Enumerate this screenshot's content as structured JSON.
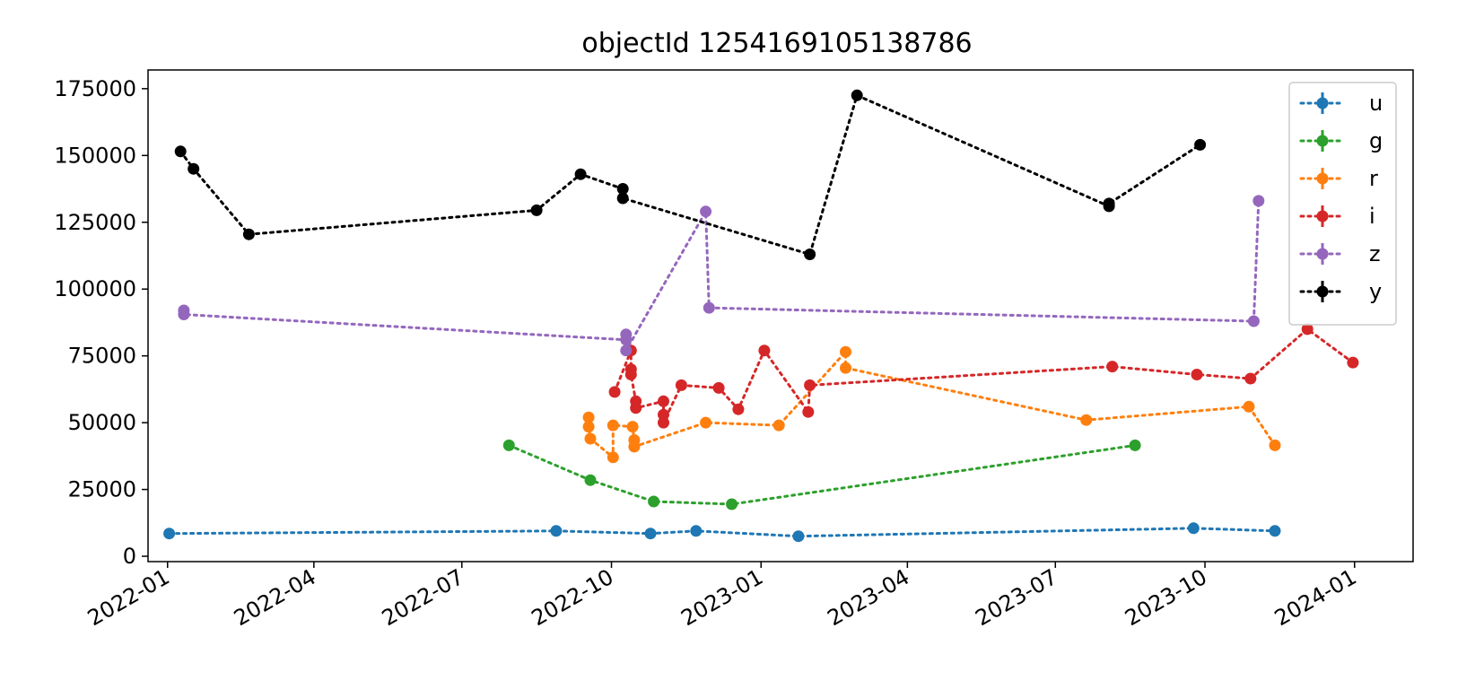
{
  "chart_data": {
    "type": "scatter",
    "title": "objectId 1254169105138786",
    "xlabel": "",
    "ylabel": "",
    "x_axis_type": "date",
    "xlim": [
      "2021-12-20",
      "2024-02-06"
    ],
    "ylim": [
      -2000,
      182000
    ],
    "x_ticks": [
      "2022-01",
      "2022-04",
      "2022-07",
      "2022-10",
      "2023-01",
      "2023-04",
      "2023-07",
      "2023-10",
      "2024-01"
    ],
    "y_ticks": [
      0,
      25000,
      50000,
      75000,
      100000,
      125000,
      150000,
      175000
    ],
    "y_tick_labels": [
      "0",
      "25000",
      "50000",
      "75000",
      "100000",
      "125000",
      "150000",
      "175000"
    ],
    "line_style": "dotted",
    "markers": true,
    "grid": false,
    "legend_position": "top-right",
    "series": [
      {
        "name": "u",
        "color": "#1f77b4",
        "points": [
          [
            "2022-01-02",
            8500
          ],
          [
            "2022-08-28",
            9500
          ],
          [
            "2022-10-25",
            8500
          ],
          [
            "2022-11-22",
            9500
          ],
          [
            "2023-01-24",
            7500
          ],
          [
            "2023-09-24",
            10500
          ],
          [
            "2023-11-13",
            9500
          ]
        ]
      },
      {
        "name": "g",
        "color": "#2ca02c",
        "points": [
          [
            "2022-07-30",
            41500
          ],
          [
            "2022-09-18",
            28500
          ],
          [
            "2022-10-27",
            20500
          ],
          [
            "2022-12-14",
            19500
          ],
          [
            "2023-08-19",
            41500
          ]
        ]
      },
      {
        "name": "r",
        "color": "#ff7f0e",
        "points": [
          [
            "2022-09-17",
            52000
          ],
          [
            "2022-09-17",
            48500
          ],
          [
            "2022-09-18",
            44000
          ],
          [
            "2022-10-02",
            37000
          ],
          [
            "2022-10-02",
            49000
          ],
          [
            "2022-10-14",
            48500
          ],
          [
            "2022-10-15",
            43500
          ],
          [
            "2022-10-15",
            41000
          ],
          [
            "2022-11-28",
            50000
          ],
          [
            "2023-01-12",
            49000
          ],
          [
            "2023-02-22",
            76500
          ],
          [
            "2023-02-22",
            70500
          ],
          [
            "2023-07-20",
            51000
          ],
          [
            "2023-10-28",
            56000
          ],
          [
            "2023-11-13",
            41500
          ]
        ]
      },
      {
        "name": "i",
        "color": "#d62728",
        "points": [
          [
            "2022-10-03",
            61500
          ],
          [
            "2022-10-13",
            77000
          ],
          [
            "2022-10-13",
            70000
          ],
          [
            "2022-10-13",
            68000
          ],
          [
            "2022-10-16",
            58000
          ],
          [
            "2022-10-16",
            55500
          ],
          [
            "2022-11-02",
            58000
          ],
          [
            "2022-11-02",
            53000
          ],
          [
            "2022-11-02",
            50000
          ],
          [
            "2022-11-13",
            64000
          ],
          [
            "2022-12-06",
            63000
          ],
          [
            "2022-12-18",
            55000
          ],
          [
            "2023-01-03",
            77000
          ],
          [
            "2023-01-30",
            54000
          ],
          [
            "2023-01-31",
            64000
          ],
          [
            "2023-08-05",
            71000
          ],
          [
            "2023-09-26",
            68000
          ],
          [
            "2023-10-29",
            66500
          ],
          [
            "2023-12-03",
            85000
          ],
          [
            "2023-12-31",
            72500
          ]
        ]
      },
      {
        "name": "z",
        "color": "#9467bd",
        "points": [
          [
            "2022-01-11",
            92000
          ],
          [
            "2022-01-11",
            90500
          ],
          [
            "2022-10-10",
            81000
          ],
          [
            "2022-10-10",
            83000
          ],
          [
            "2022-10-10",
            77000
          ],
          [
            "2022-11-28",
            129000
          ],
          [
            "2022-11-30",
            93000
          ],
          [
            "2023-10-31",
            88000
          ],
          [
            "2023-11-03",
            133000
          ]
        ]
      },
      {
        "name": "y",
        "color": "#000000",
        "points": [
          [
            "2022-01-09",
            151500
          ],
          [
            "2022-01-17",
            145000
          ],
          [
            "2022-02-20",
            120500
          ],
          [
            "2022-08-16",
            129500
          ],
          [
            "2022-09-12",
            143000
          ],
          [
            "2022-10-08",
            137500
          ],
          [
            "2022-10-08",
            134000
          ],
          [
            "2023-01-31",
            113000
          ],
          [
            "2023-03-01",
            172500
          ],
          [
            "2023-08-03",
            131000
          ],
          [
            "2023-08-03",
            132000
          ],
          [
            "2023-09-28",
            154000
          ]
        ]
      }
    ]
  }
}
